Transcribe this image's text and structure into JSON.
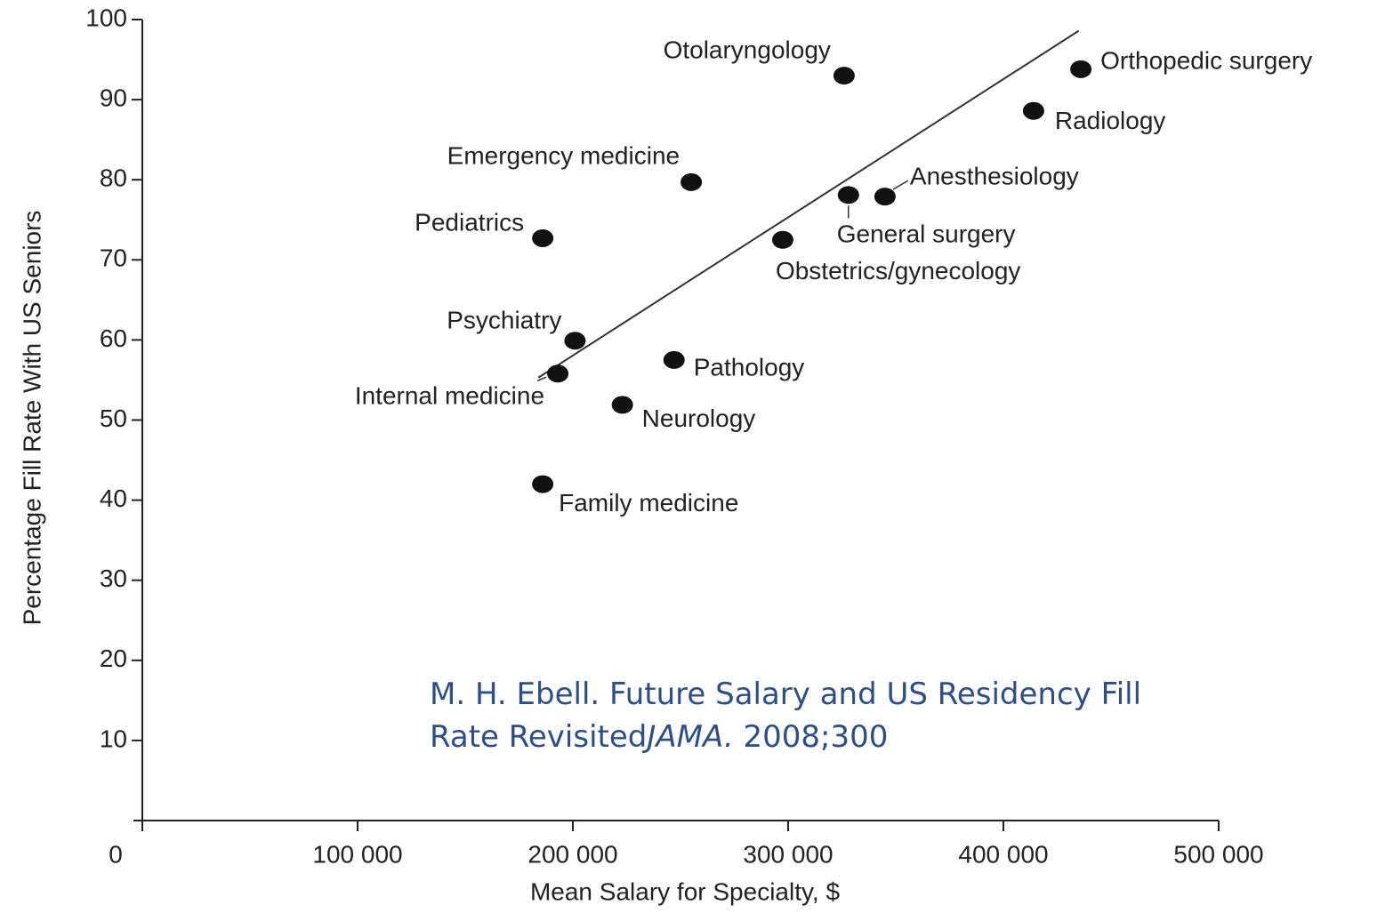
{
  "chart_data": {
    "type": "scatter",
    "x_label": "Mean Salary for Specialty, $",
    "y_label": "Percentage Fill Rate With US Seniors",
    "xlim": [
      0,
      500000
    ],
    "xticks": [
      0,
      {
        "value": 100000,
        "label": "100 000"
      },
      {
        "value": 200000,
        "label": "200 000"
      },
      {
        "value": 300000,
        "label": "300 000"
      },
      {
        "value": 400000,
        "label": "400 000"
      },
      {
        "value": 500000,
        "label": "500 000"
      }
    ],
    "ylim": [
      0,
      100
    ],
    "yticks": [
      10,
      20,
      30,
      40,
      50,
      60,
      70,
      80,
      90,
      100
    ],
    "color": "#111111",
    "series": [
      {
        "name": null,
        "labels": [
          "Otolaryngology",
          "Orthopedic surgery",
          "Radiology",
          "Emergency medicine",
          "Anesthesiology",
          "General surgery",
          "Obstetrics/gynecology",
          "Pediatrics",
          "Psychiatry",
          "Internal medicine",
          "Pathology",
          "Neurology",
          "Family medicine"
        ],
        "x": [
          326000,
          436000,
          414000,
          255000,
          345000,
          328000,
          297500,
          186000,
          201000,
          193000,
          247000,
          223000,
          186000
        ],
        "y": [
          93.0,
          93.8,
          88.6,
          79.7,
          77.9,
          78.1,
          72.5,
          72.7,
          59.9,
          55.8,
          57.5,
          51.9,
          42.0
        ]
      }
    ],
    "trend_line": {
      "x": [
        184000,
        435000
      ],
      "y": [
        55.3,
        98.6
      ]
    },
    "annotation": [
      "M. H. Ebell. Future Salary and US Residency Fill",
      "Rate Revisited",
      "JAMA.",
      " 2008;300"
    ]
  }
}
